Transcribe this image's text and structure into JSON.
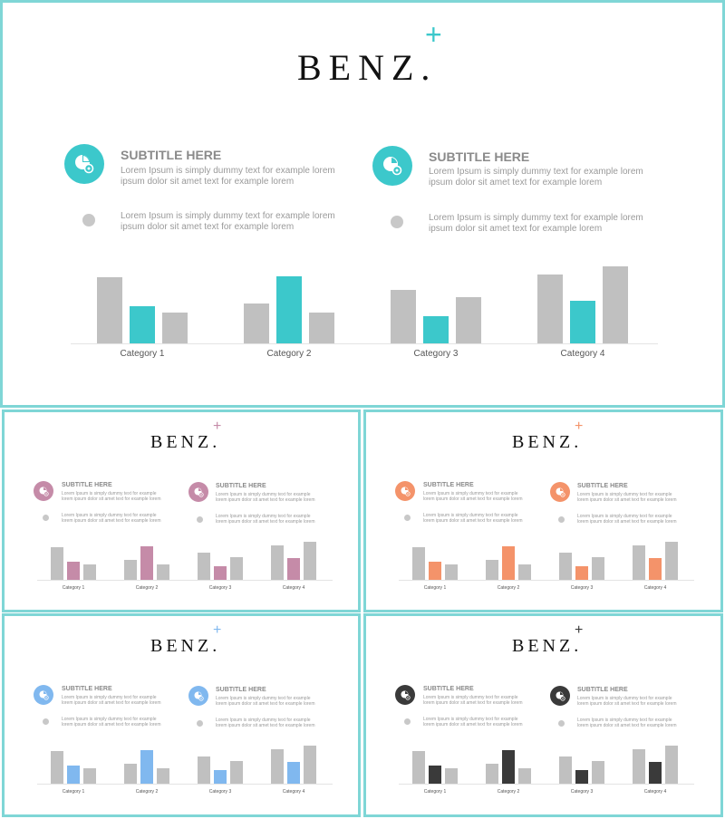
{
  "accent_colors": [
    "#3cc8cb",
    "#c58ba8",
    "#f4936a",
    "#80b8ef",
    "#3a3a3a"
  ],
  "neutral_bar_color": "#c0c0c0",
  "slides": [
    {
      "logo": "BENZ.",
      "plus": "+",
      "icon": "pie-chart-gear-icon",
      "blocks": [
        {
          "subtitle": "SUBTITLE HERE",
          "text1": "Lorem Ipsum is simply dummy text for example lorem ipsum dolor sit amet text for example lorem",
          "text2": "Lorem Ipsum is simply dummy text for example lorem ipsum dolor sit amet text for example lorem"
        },
        {
          "subtitle": "SUBTITLE HERE",
          "text1": "Lorem Ipsum is simply dummy text for example lorem ipsum dolor sit amet text for example lorem",
          "text2": "Lorem Ipsum is simply dummy text for example lorem ipsum dolor sit amet text for example lorem"
        }
      ]
    },
    {
      "logo": "BENZ.",
      "plus": "+",
      "icon": "pie-chart-gear-icon",
      "blocks": [
        {
          "subtitle": "SUBTITLE HERE",
          "text1": "Lorem Ipsum is simply dummy text for example lorem ipsum dolor sit amet text for example lorem",
          "text2": "Lorem Ipsum is simply dummy text for example lorem ipsum dolor sit amet text for example lorem"
        },
        {
          "subtitle": "SUBTITLE HERE",
          "text1": "Lorem Ipsum is simply dummy text for example lorem ipsum dolor sit amet text for example lorem",
          "text2": "Lorem Ipsum is simply dummy text for example lorem ipsum dolor sit amet text for example lorem"
        }
      ]
    },
    {
      "logo": "BENZ.",
      "plus": "+",
      "icon": "pie-chart-gear-icon",
      "blocks": [
        {
          "subtitle": "SUBTITLE HERE",
          "text1": "Lorem Ipsum is simply dummy text for example lorem ipsum dolor sit amet text for example lorem",
          "text2": "Lorem Ipsum is simply dummy text for example lorem ipsum dolor sit amet text for example lorem"
        },
        {
          "subtitle": "SUBTITLE HERE",
          "text1": "Lorem Ipsum is simply dummy text for example lorem ipsum dolor sit amet text for example lorem",
          "text2": "Lorem Ipsum is simply dummy text for example lorem ipsum dolor sit amet text for example lorem"
        }
      ]
    },
    {
      "logo": "BENZ.",
      "plus": "+",
      "icon": "pie-chart-gear-icon",
      "blocks": [
        {
          "subtitle": "SUBTITLE HERE",
          "text1": "Lorem Ipsum is simply dummy text for example lorem ipsum dolor sit amet text for example lorem",
          "text2": "Lorem Ipsum is simply dummy text for example lorem ipsum dolor sit amet text for example lorem"
        },
        {
          "subtitle": "SUBTITLE HERE",
          "text1": "Lorem Ipsum is simply dummy text for example lorem ipsum dolor sit amet text for example lorem",
          "text2": "Lorem Ipsum is simply dummy text for example lorem ipsum dolor sit amet text for example lorem"
        }
      ]
    },
    {
      "logo": "BENZ.",
      "plus": "+",
      "icon": "pie-chart-gear-icon",
      "blocks": [
        {
          "subtitle": "SUBTITLE HERE",
          "text1": "Lorem Ipsum is simply dummy text for example lorem ipsum dolor sit amet text for example lorem",
          "text2": "Lorem Ipsum is simply dummy text for example lorem ipsum dolor sit amet text for example lorem"
        },
        {
          "subtitle": "SUBTITLE HERE",
          "text1": "Lorem Ipsum is simply dummy text for example lorem ipsum dolor sit amet text for example lorem",
          "text2": "Lorem Ipsum is simply dummy text for example lorem ipsum dolor sit amet text for example lorem"
        }
      ]
    }
  ],
  "chart_data": {
    "type": "bar",
    "categories": [
      "Category 1",
      "Category 2",
      "Category 3",
      "Category 4"
    ],
    "series": [
      {
        "values": [
          4.3,
          2.6,
          3.5,
          4.5
        ]
      },
      {
        "values": [
          2.4,
          4.4,
          1.8,
          2.8
        ]
      },
      {
        "values": [
          2.0,
          2.0,
          3.0,
          5.0
        ]
      }
    ],
    "colors": [
      "neutral",
      "accent",
      "neutral"
    ],
    "ylim": [
      0,
      5.2
    ],
    "grid": false,
    "legend": "none"
  }
}
